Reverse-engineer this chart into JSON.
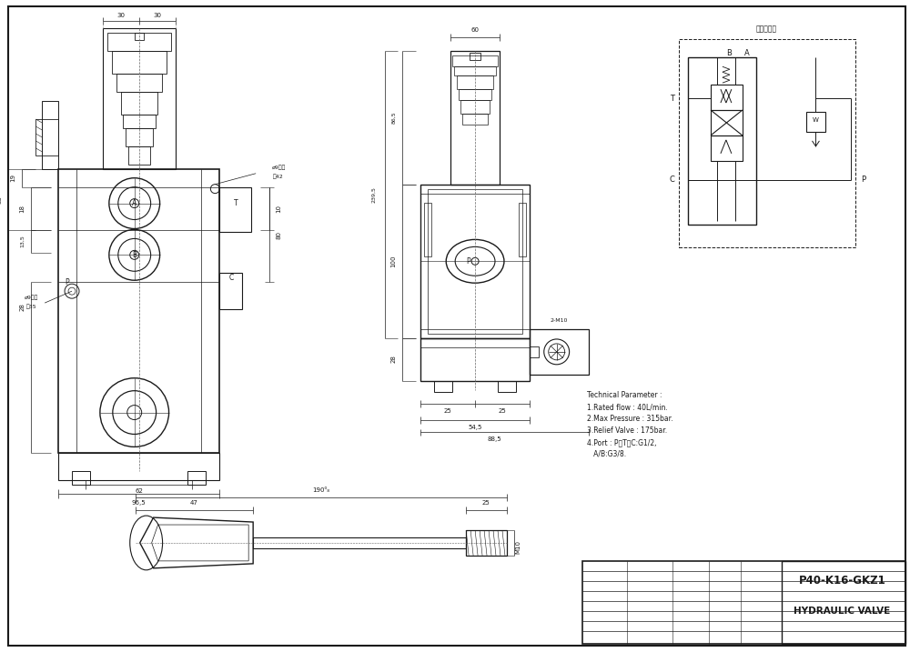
{
  "bg_color": "#ffffff",
  "line_color": "#1a1a1a",
  "dim_color": "#1a1a1a",
  "title": "P40-K16-GKZ1",
  "subtitle": "HYDRAULIC VALVE",
  "tech_params": [
    "Technical Parameter :",
    "1.Rated flow : 40L/min.",
    "2.Max Pressure : 315bar.",
    "3.Relief Valve : 175bar.",
    "4.Port : P、T、C:G1/2,",
    "   A/B:G3/8."
  ],
  "hydraulic_label": "液压原理图"
}
